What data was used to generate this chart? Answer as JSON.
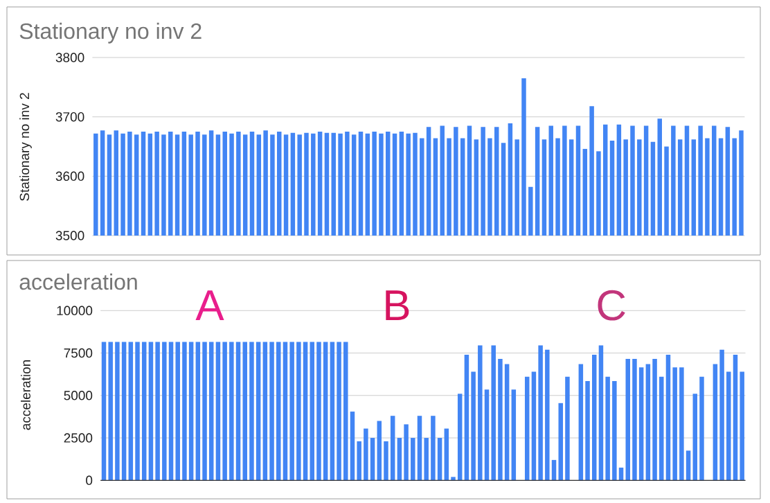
{
  "chart_data": [
    {
      "type": "bar",
      "title": "Stationary no inv 2",
      "ylabel": "Stationary no inv 2",
      "categories": [
        null,
        null,
        null,
        null,
        null,
        null,
        null,
        null,
        null,
        null,
        null,
        null,
        null,
        null,
        null,
        null,
        null,
        null,
        null,
        null,
        null,
        null,
        null,
        null,
        null,
        null,
        null,
        null,
        null,
        null,
        null,
        null,
        null,
        null,
        null,
        null,
        null,
        null,
        null,
        null,
        null,
        null,
        null,
        null,
        null,
        null,
        null,
        null,
        null,
        null,
        null,
        null,
        null,
        null,
        null,
        null,
        null,
        null,
        null,
        null,
        null,
        null,
        null,
        null,
        null,
        null,
        null,
        null,
        null,
        null,
        null,
        null,
        null,
        null,
        null,
        null,
        null,
        null,
        null,
        null,
        null,
        null,
        null,
        null,
        null,
        null,
        null,
        null,
        null,
        null,
        null,
        null,
        null,
        null,
        null,
        null
      ],
      "values": [
        3672,
        3677,
        3670,
        3677,
        3672,
        3675,
        3670,
        3675,
        3672,
        3675,
        3670,
        3675,
        3670,
        3675,
        3670,
        3675,
        3670,
        3677,
        3670,
        3675,
        3672,
        3675,
        3670,
        3675,
        3670,
        3677,
        3670,
        3675,
        3670,
        3673,
        3670,
        3673,
        3672,
        3675,
        3673,
        3673,
        3672,
        3675,
        3670,
        3675,
        3672,
        3675,
        3672,
        3675,
        3672,
        3675,
        3672,
        3673,
        3664,
        3683,
        3664,
        3685,
        3664,
        3683,
        3664,
        3685,
        3662,
        3683,
        3664,
        3683,
        3656,
        3689,
        3662,
        3765,
        3582,
        3683,
        3662,
        3685,
        3664,
        3685,
        3662,
        3685,
        3646,
        3718,
        3642,
        3687,
        3660,
        3687,
        3662,
        3685,
        3662,
        3685,
        3658,
        3697,
        3650,
        3685,
        3662,
        3685,
        3662,
        3685,
        3664,
        3685,
        3664,
        3683,
        3664,
        3677
      ],
      "color": "#4285f4",
      "ylim": [
        3500,
        3800
      ],
      "yticks": [
        3500,
        3600,
        3700,
        3800
      ],
      "grid": "y",
      "tick_labels": "y"
    },
    {
      "type": "bar",
      "title": "acceleration",
      "ylabel": "acceleration",
      "categories": [
        null,
        null,
        null,
        null,
        null,
        null,
        null,
        null,
        null,
        null,
        null,
        null,
        null,
        null,
        null,
        null,
        null,
        null,
        null,
        null,
        null,
        null,
        null,
        null,
        null,
        null,
        null,
        null,
        null,
        null,
        null,
        null,
        null,
        null,
        null,
        null,
        null,
        null,
        null,
        null,
        null,
        null,
        null,
        null,
        null,
        null,
        null,
        null,
        null,
        null,
        null,
        null,
        null,
        null,
        null,
        null,
        null,
        null,
        null,
        null,
        null,
        null,
        null,
        null,
        null,
        null,
        null,
        null,
        null,
        null,
        null,
        null,
        null,
        null,
        null,
        null,
        null,
        null,
        null,
        null,
        null,
        null,
        null,
        null,
        null,
        null,
        null,
        null,
        null,
        null,
        null,
        null,
        null,
        null,
        null,
        null
      ],
      "values": [
        8150,
        8150,
        8150,
        8150,
        8150,
        8150,
        8150,
        8150,
        8150,
        8150,
        8150,
        8150,
        8150,
        8150,
        8150,
        8150,
        8150,
        8150,
        8150,
        8150,
        8150,
        8150,
        8150,
        8150,
        8150,
        8150,
        8150,
        8150,
        8150,
        8150,
        8150,
        8150,
        8150,
        8150,
        8150,
        8150,
        8150,
        4050,
        2300,
        3050,
        2500,
        3500,
        2300,
        3800,
        2500,
        3300,
        2500,
        3800,
        2500,
        3800,
        2500,
        3050,
        200,
        5100,
        7400,
        6400,
        7950,
        5350,
        7950,
        7150,
        6850,
        5350,
        null,
        6100,
        6400,
        7950,
        7700,
        1200,
        4550,
        6100,
        null,
        6850,
        5850,
        7400,
        7950,
        6100,
        5850,
        750,
        7150,
        7150,
        6650,
        6850,
        7150,
        6100,
        7400,
        6650,
        6650,
        1750,
        5100,
        6100,
        null,
        6850,
        7700,
        6400,
        7400,
        6400
      ],
      "color": "#4285f4",
      "ylim": [
        0,
        10000
      ],
      "yticks": [
        0,
        2500,
        5000,
        7500,
        10000
      ],
      "grid": "y",
      "tick_labels": "y",
      "annotations": [
        "A",
        "B",
        "C"
      ]
    }
  ]
}
